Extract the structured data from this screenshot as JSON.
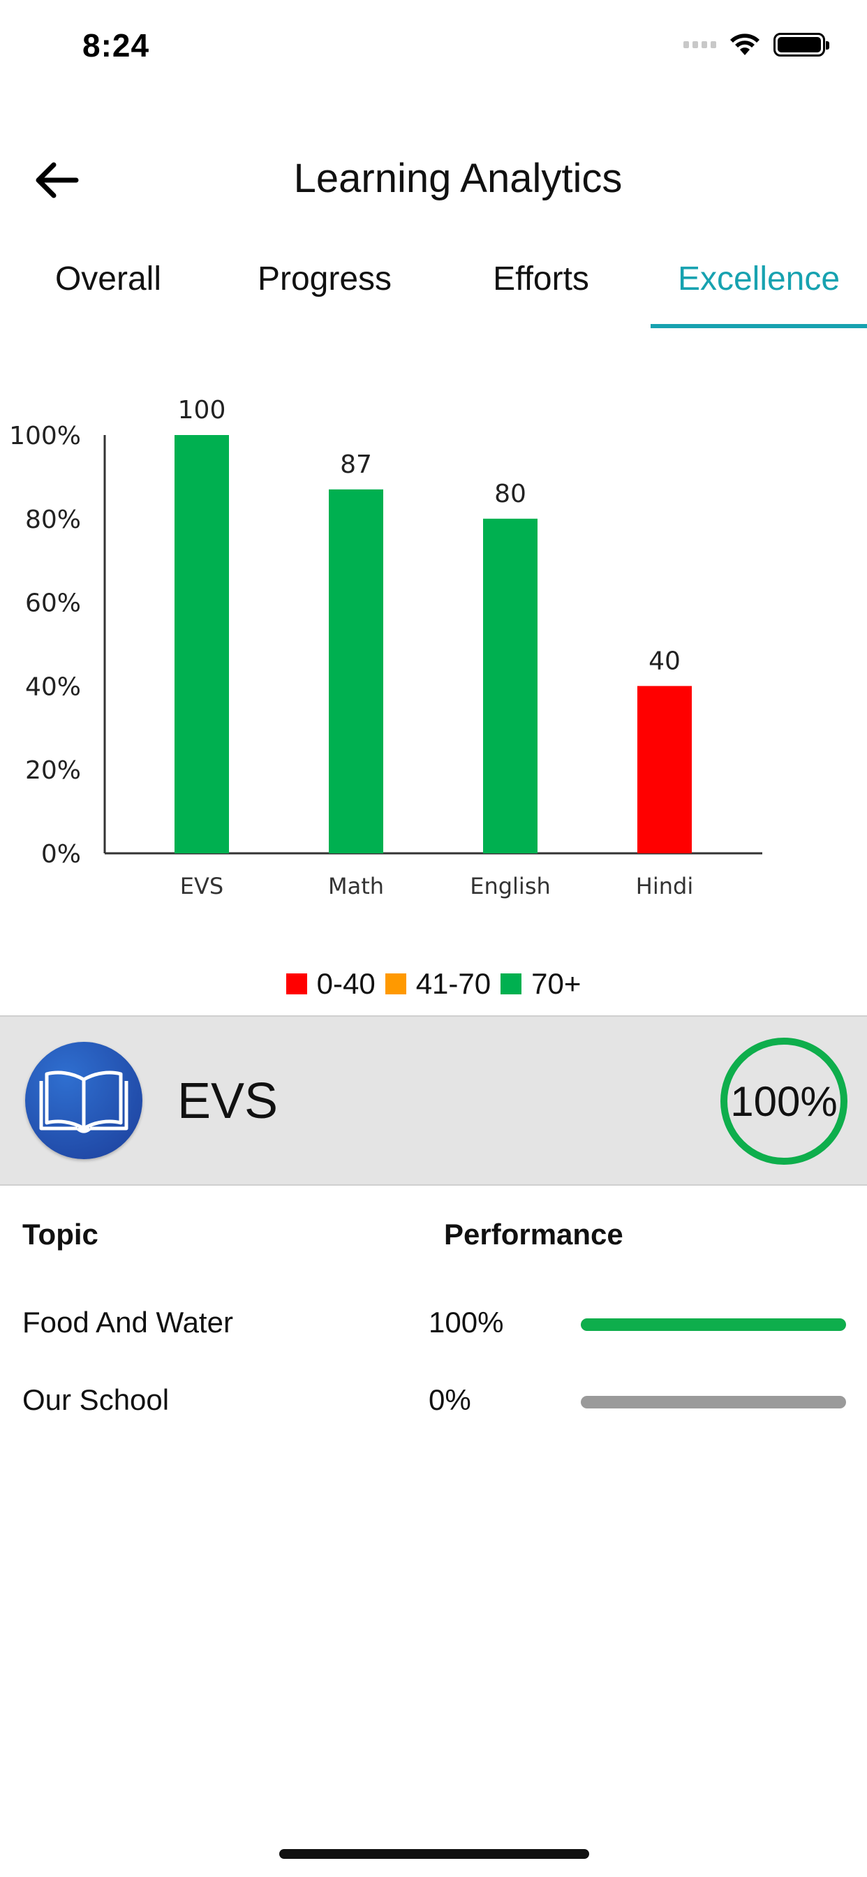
{
  "status_bar": {
    "time": "8:24"
  },
  "header": {
    "title": "Learning Analytics"
  },
  "tabs": [
    {
      "label": "Overall",
      "active": false
    },
    {
      "label": "Progress",
      "active": false
    },
    {
      "label": "Efforts",
      "active": false
    },
    {
      "label": "Excellence",
      "active": true
    }
  ],
  "chart_data": {
    "type": "bar",
    "categories": [
      "EVS",
      "Math",
      "English",
      "Hindi"
    ],
    "values": [
      100,
      87,
      80,
      40
    ],
    "data_labels": [
      "100",
      "87",
      "80",
      "40"
    ],
    "bar_colors": [
      "#00b050",
      "#00b050",
      "#00b050",
      "#ff0000"
    ],
    "y_ticks": [
      "0%",
      "20%",
      "40%",
      "60%",
      "80%",
      "100%"
    ],
    "ylim": [
      0,
      100
    ],
    "legend": [
      {
        "label": "0-40",
        "color": "#ff0000"
      },
      {
        "label": "41-70",
        "color": "#ff9900"
      },
      {
        "label": "70+",
        "color": "#00b050"
      }
    ],
    "legend_position": "bottom",
    "grid": false
  },
  "subject": {
    "name": "EVS",
    "score_text": "100%",
    "ring_color": "#0eae4c",
    "icon": "open-book-icon"
  },
  "table": {
    "headers": {
      "topic": "Topic",
      "performance": "Performance"
    },
    "rows": [
      {
        "topic": "Food And Water",
        "pct_text": "100%",
        "value": 1.0
      },
      {
        "topic": "Our School",
        "pct_text": "0%",
        "value": 0.0
      }
    ]
  }
}
